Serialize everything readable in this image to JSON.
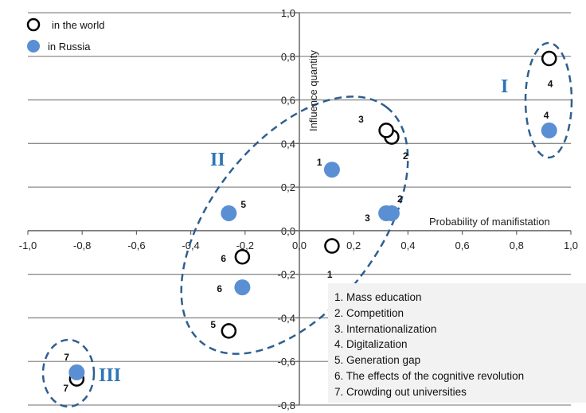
{
  "chart_data": {
    "type": "scatter",
    "title": "",
    "xlabel": "Probability of manifistation",
    "ylabel": "Influence quantity",
    "xlim": [
      -1.0,
      1.0
    ],
    "ylim": [
      -0.8,
      1.0
    ],
    "x_ticks": [
      -1.0,
      -0.8,
      -0.6,
      -0.4,
      -0.2,
      0.0,
      0.2,
      0.4,
      0.6,
      0.8,
      1.0
    ],
    "y_ticks": [
      -0.8,
      -0.6,
      -0.4,
      -0.2,
      0.0,
      0.2,
      0.4,
      0.6,
      0.8,
      1.0
    ],
    "x_tick_labels": [
      "-1,0",
      "-0,8",
      "-0,6",
      "-0,4",
      "-0,2",
      "0,0",
      "0,2",
      "0,4",
      "0,6",
      "0,8",
      "1,0"
    ],
    "y_tick_labels": [
      "-0,8",
      "-0,6",
      "-0,4",
      "-0,2",
      "0,0",
      "0,2",
      "0,4",
      "0,6",
      "0,8",
      "1,0"
    ],
    "grid": "horizontal",
    "legend_position": "top-left",
    "series": [
      {
        "name": "in the world",
        "marker": "open-circle",
        "color": "#000000",
        "points": [
          {
            "id": "1",
            "x": 0.12,
            "y": -0.07
          },
          {
            "id": "2",
            "x": 0.34,
            "y": 0.43
          },
          {
            "id": "3",
            "x": 0.32,
            "y": 0.46
          },
          {
            "id": "4",
            "x": 0.92,
            "y": 0.79
          },
          {
            "id": "5",
            "x": -0.26,
            "y": -0.46
          },
          {
            "id": "6",
            "x": -0.21,
            "y": -0.12
          },
          {
            "id": "7",
            "x": -0.82,
            "y": -0.68
          }
        ]
      },
      {
        "name": "in Russia",
        "marker": "filled-circle",
        "color": "#5b8fd4",
        "points": [
          {
            "id": "1",
            "x": 0.12,
            "y": 0.28
          },
          {
            "id": "2",
            "x": 0.34,
            "y": 0.08
          },
          {
            "id": "3",
            "x": 0.32,
            "y": 0.08
          },
          {
            "id": "4",
            "x": 0.92,
            "y": 0.46
          },
          {
            "id": "5",
            "x": -0.26,
            "y": 0.08
          },
          {
            "id": "6",
            "x": -0.21,
            "y": -0.26
          },
          {
            "id": "7",
            "x": -0.82,
            "y": -0.65
          }
        ]
      }
    ],
    "clusters": [
      {
        "label": "I",
        "members": [
          "4"
        ]
      },
      {
        "label": "II",
        "members": [
          "1",
          "2",
          "3",
          "5",
          "6"
        ]
      },
      {
        "label": "III",
        "members": [
          "7"
        ]
      }
    ],
    "cluster_color": "#2e5f8f",
    "factors": [
      "1. Mass education",
      "2. Competition",
      "3. Internationalization",
      "4. Digitalization",
      "5. Generation gap",
      "6. The effects of the cognitive revolution",
      "7. Crowding out universities"
    ]
  }
}
